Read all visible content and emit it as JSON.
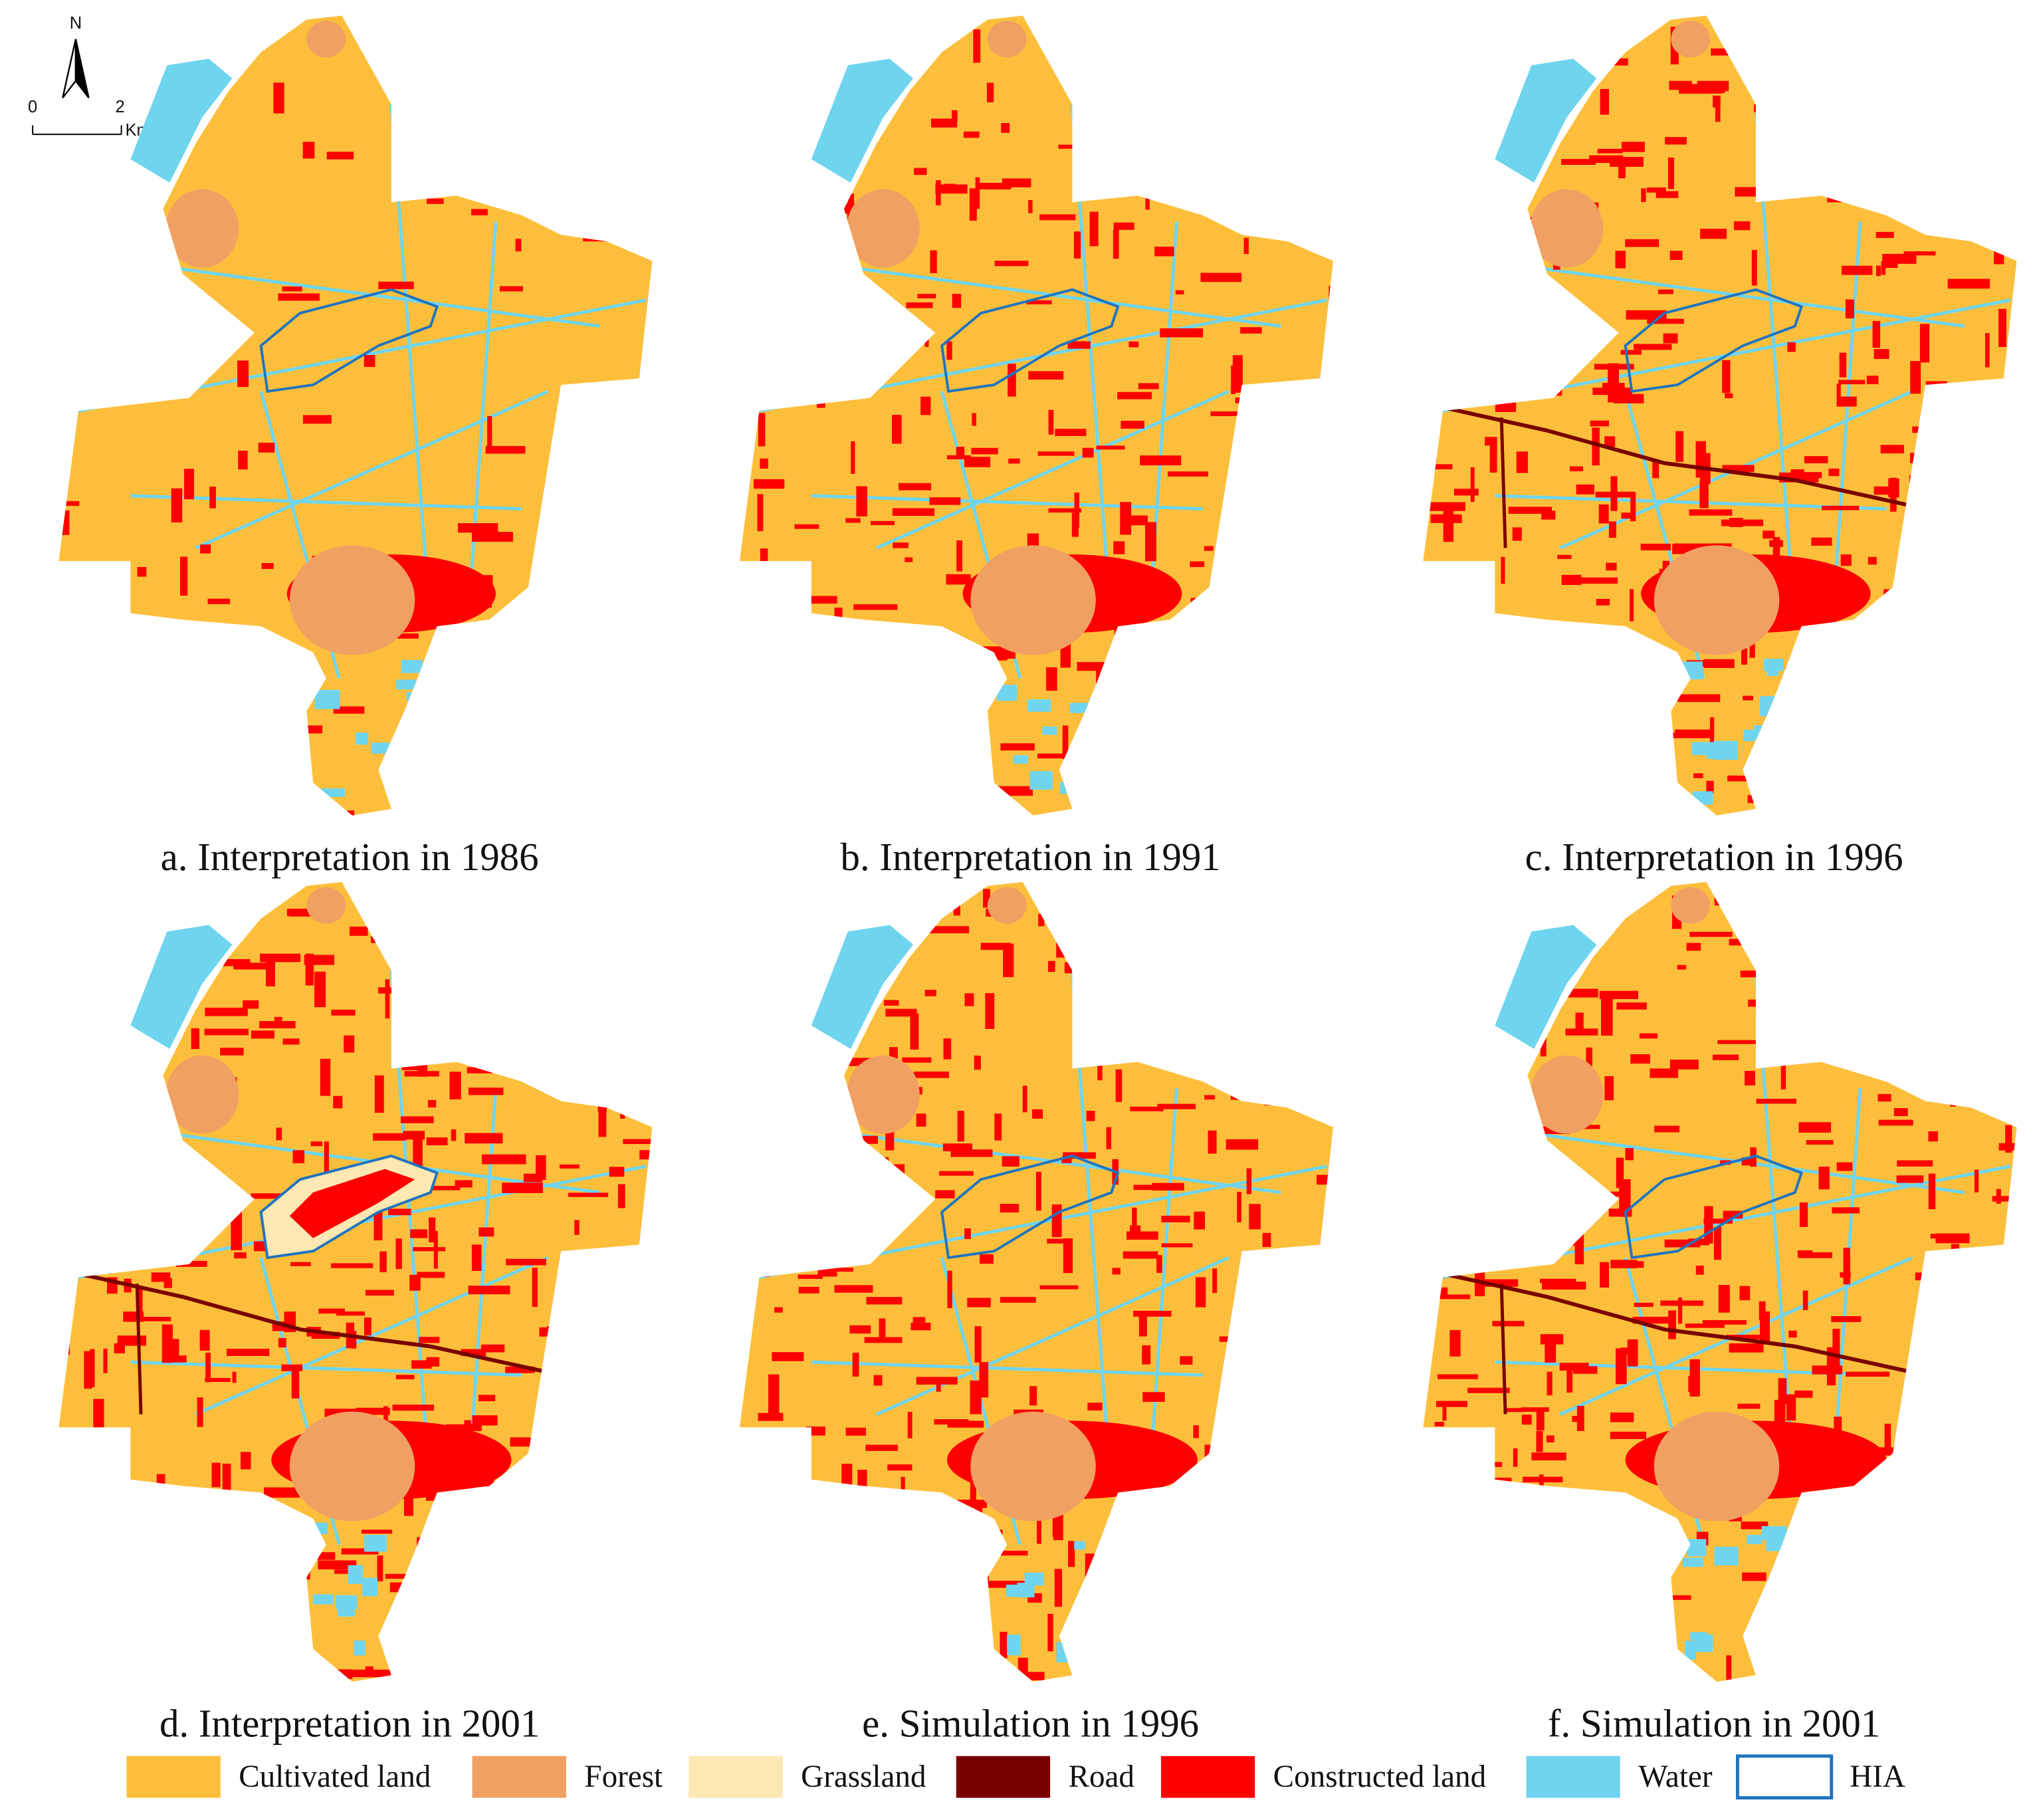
{
  "north": "N",
  "scale_bar": {
    "ticks": [
      "0",
      "2"
    ],
    "unit": "Km"
  },
  "panels": [
    {
      "caption": "a. Interpretation in 1986"
    },
    {
      "caption": "b. Interpretation in 1991"
    },
    {
      "caption": "c. Interpretation in 1996"
    },
    {
      "caption": "d. Interpretation in 2001"
    },
    {
      "caption": "e. Simulation in 1996"
    },
    {
      "caption": "f. Simulation in 2001"
    }
  ],
  "legend": [
    {
      "label": "Cultivated land",
      "color": "#fdbf3b"
    },
    {
      "label": "Forest",
      "color": "#efa062"
    },
    {
      "label": "Grassland",
      "color": "#fde7b2"
    },
    {
      "label": "Road",
      "color": "#7a0000"
    },
    {
      "label": "Constructed land",
      "color": "#ff0000"
    },
    {
      "label": "Water",
      "color": "#6fd5ef"
    },
    {
      "label": "HIA",
      "color": "#1f74bf"
    }
  ]
}
